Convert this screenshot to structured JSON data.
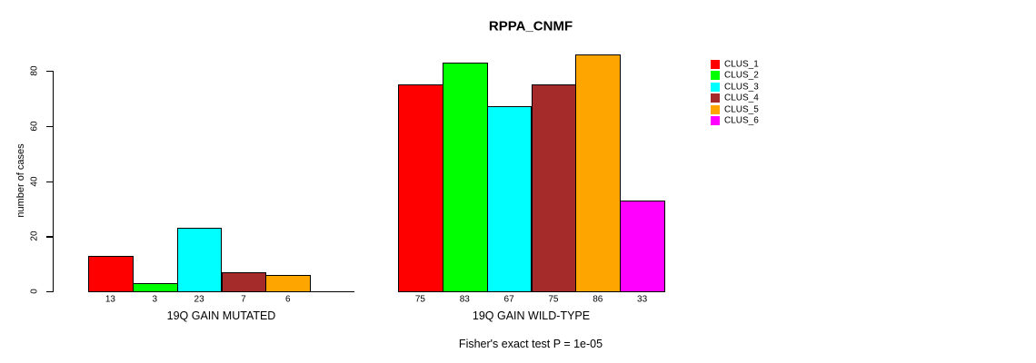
{
  "chart_data": {
    "type": "bar",
    "title": "RPPA_CNMF",
    "ylabel": "number of cases",
    "ylim": [
      0,
      80
    ],
    "yticks": [
      0,
      20,
      40,
      60,
      80
    ],
    "grid": false,
    "legend_position": "right",
    "series_labels": [
      "CLUS_1",
      "CLUS_2",
      "CLUS_3",
      "CLUS_4",
      "CLUS_5",
      "CLUS_6"
    ],
    "series_colors": [
      "#ff0000",
      "#00ff00",
      "#00ffff",
      "#a52a2a",
      "#ffa500",
      "#ff00ff"
    ],
    "groups": [
      {
        "label": "19Q GAIN MUTATED",
        "values": [
          13,
          3,
          23,
          7,
          6,
          0
        ],
        "bar_labels": [
          "13",
          "3",
          "23",
          "7",
          "6",
          ""
        ]
      },
      {
        "label": "19Q GAIN WILD-TYPE",
        "values": [
          75,
          83,
          67,
          75,
          86,
          33
        ],
        "bar_labels": [
          "75",
          "83",
          "67",
          "75",
          "86",
          "33"
        ]
      }
    ],
    "footnote": "Fisher's exact test P = 1e-05"
  }
}
